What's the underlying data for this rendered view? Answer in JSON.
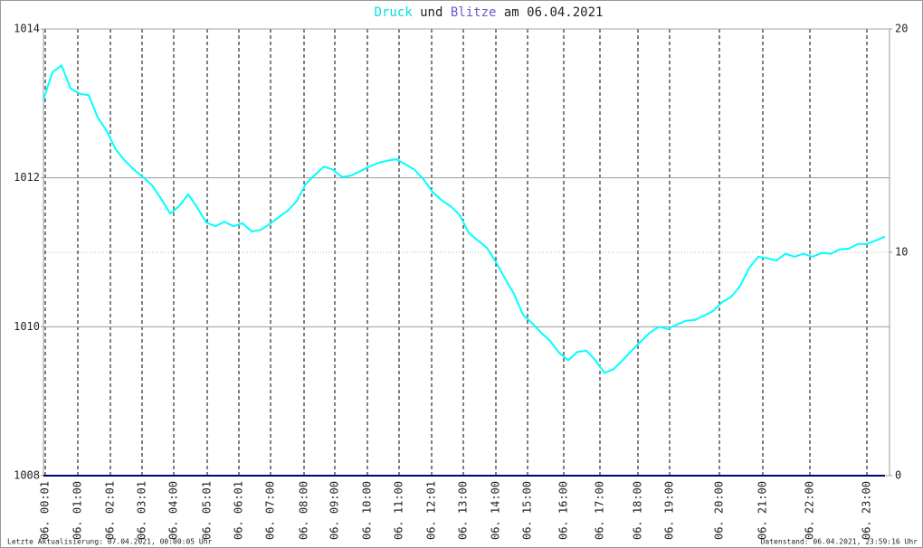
{
  "chart_data": {
    "type": "line",
    "title_joiner": "und",
    "title_date": "am 06.04.2021",
    "footer_left": "Letzte Aktualisierung: 07.04.2021, 00:00:05 Uhr",
    "footer_right": "Datenstand: 06.04.2021, 23:59:16 Uhr",
    "xlim": [
      0,
      93
    ],
    "xticks": [
      {
        "value": 0.2,
        "label": "06. 00:01"
      },
      {
        "value": 3.8,
        "label": "06. 01:00"
      },
      {
        "value": 7.4,
        "label": "06. 02:01"
      },
      {
        "value": 10.9,
        "label": "06. 03:01"
      },
      {
        "value": 14.4,
        "label": "06. 04:00"
      },
      {
        "value": 18.1,
        "label": "06. 05:01"
      },
      {
        "value": 21.6,
        "label": "06. 06:01"
      },
      {
        "value": 25.1,
        "label": "06. 07:00"
      },
      {
        "value": 28.8,
        "label": "06. 08:00"
      },
      {
        "value": 32.2,
        "label": "06. 09:00"
      },
      {
        "value": 35.8,
        "label": "06. 10:00"
      },
      {
        "value": 39.3,
        "label": "06. 11:00"
      },
      {
        "value": 42.9,
        "label": "06. 12:01"
      },
      {
        "value": 46.4,
        "label": "06. 13:00"
      },
      {
        "value": 50,
        "label": "06. 14:00"
      },
      {
        "value": 53.5,
        "label": "06. 15:00"
      },
      {
        "value": 57.5,
        "label": "06. 16:00"
      },
      {
        "value": 61.5,
        "label": "06. 17:00"
      },
      {
        "value": 65.7,
        "label": "06. 18:00"
      },
      {
        "value": 69.2,
        "label": "06. 19:00"
      },
      {
        "value": 74.7,
        "label": "06. 20:00"
      },
      {
        "value": 79.5,
        "label": "06. 21:00"
      },
      {
        "value": 84.7,
        "label": "06. 22:00"
      },
      {
        "value": 91,
        "label": "06. 23:00"
      }
    ],
    "ylim": [
      1008,
      1014
    ],
    "yticks": [
      1008,
      1010,
      1012,
      1014
    ],
    "y2lim": [
      0,
      20
    ],
    "y2ticks": [
      0,
      10,
      20
    ],
    "grid": true,
    "series": [
      {
        "name": "Druck",
        "color": "#00ffff",
        "values": [
          1013.05,
          1013.42,
          1013.51,
          1013.2,
          1013.13,
          1013.11,
          1012.81,
          1012.63,
          1012.38,
          1012.23,
          1012.11,
          1012.01,
          1011.9,
          1011.72,
          1011.52,
          1011.62,
          1011.78,
          1011.6,
          1011.4,
          1011.35,
          1011.41,
          1011.35,
          1011.39,
          1011.28,
          1011.3,
          1011.38,
          1011.47,
          1011.56,
          1011.69,
          1011.92,
          1012.04,
          1012.15,
          1012.11,
          1012.01,
          1012.03,
          1012.09,
          1012.15,
          1012.2,
          1012.23,
          1012.25,
          1012.18,
          1012.11,
          1011.98,
          1011.81,
          1011.7,
          1011.62,
          1011.5,
          1011.26,
          1011.16,
          1011.06,
          1010.87,
          1010.65,
          1010.44,
          1010.16,
          1010.05,
          1009.92,
          1009.81,
          1009.65,
          1009.55,
          1009.66,
          1009.68,
          1009.55,
          1009.38,
          1009.43,
          1009.55,
          1009.68,
          1009.8,
          1009.92,
          1010.0,
          1009.97,
          1010.03,
          1010.08,
          1010.09,
          1010.15,
          1010.21,
          1010.33,
          1010.4,
          1010.55,
          1010.79,
          1010.94,
          1010.92,
          1010.89,
          1010.98,
          1010.94,
          1010.98,
          1010.94,
          1010.99,
          1010.98,
          1011.04,
          1011.05,
          1011.11,
          1011.11,
          1011.16,
          1011.21
        ]
      },
      {
        "name": "Blitze",
        "color": "#000080",
        "axis": "y2",
        "values": [
          0,
          0,
          0,
          0,
          0,
          0,
          0,
          0,
          0,
          0,
          0,
          0,
          0,
          0,
          0,
          0,
          0,
          0,
          0,
          0,
          0,
          0,
          0,
          0,
          0,
          0,
          0,
          0,
          0,
          0,
          0,
          0,
          0,
          0,
          0,
          0,
          0,
          0,
          0,
          0,
          0,
          0,
          0,
          0,
          0,
          0,
          0,
          0,
          0,
          0,
          0,
          0,
          0,
          0,
          0,
          0,
          0,
          0,
          0,
          0,
          0,
          0,
          0,
          0,
          0,
          0,
          0,
          0,
          0,
          0,
          0,
          0,
          0,
          0,
          0,
          0,
          0,
          0,
          0,
          0,
          0,
          0,
          0,
          0,
          0,
          0,
          0,
          0,
          0,
          0,
          0,
          0,
          0,
          0
        ]
      }
    ]
  }
}
